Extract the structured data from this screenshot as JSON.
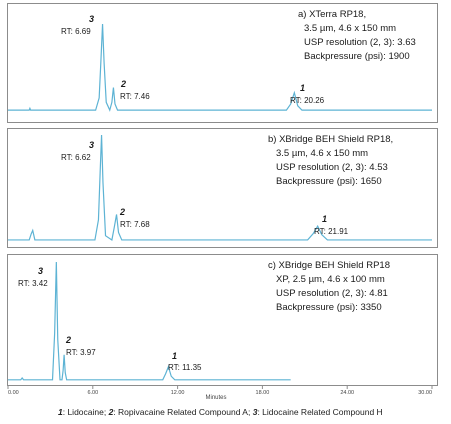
{
  "chart_data": [
    {
      "type": "line",
      "panel": "a",
      "header": [
        "a) XTerra RP18,",
        "3.5 µm, 4.6 x 150 mm",
        "USP resolution (2, 3): 3.63",
        "Backpressure (psi): 1900"
      ],
      "x": [
        0,
        1.5,
        1.55,
        1.6,
        6.2,
        6.45,
        6.58,
        6.69,
        6.8,
        6.95,
        7.2,
        7.35,
        7.46,
        7.57,
        7.75,
        19.7,
        20.0,
        20.26,
        20.5,
        20.8,
        30.0
      ],
      "y": [
        0.01,
        0.01,
        0.03,
        0.01,
        0.01,
        0.15,
        0.6,
        1.0,
        0.55,
        0.1,
        0.01,
        0.1,
        0.27,
        0.08,
        0.01,
        0.01,
        0.08,
        0.21,
        0.06,
        0.01,
        0.01
      ],
      "peaks": [
        {
          "number": "3",
          "rt_label": "RT: 6.69",
          "rt": 6.69
        },
        {
          "number": "2",
          "rt_label": "RT: 7.46",
          "rt": 7.46
        },
        {
          "number": "1",
          "rt_label": "RT: 20.26",
          "rt": 20.26
        }
      ]
    },
    {
      "type": "line",
      "panel": "b",
      "header": [
        "b) XBridge BEH Shield RP18,",
        "3.5 µm, 4.6 x 150 mm",
        "USP resolution (2, 3): 4.53",
        "Backpressure (psi): 1650"
      ],
      "x": [
        0,
        1.5,
        1.65,
        1.75,
        1.9,
        6.15,
        6.4,
        6.52,
        6.62,
        6.72,
        6.9,
        7.35,
        7.52,
        7.68,
        7.82,
        8.05,
        21.2,
        21.6,
        21.91,
        22.2,
        22.6,
        30.0
      ],
      "y": [
        0.01,
        0.01,
        0.07,
        0.1,
        0.01,
        0.01,
        0.2,
        0.65,
        1.0,
        0.55,
        0.05,
        0.01,
        0.13,
        0.25,
        0.08,
        0.01,
        0.01,
        0.07,
        0.14,
        0.06,
        0.01,
        0.01
      ],
      "peaks": [
        {
          "number": "3",
          "rt_label": "RT: 6.62",
          "rt": 6.62
        },
        {
          "number": "2",
          "rt_label": "RT: 7.68",
          "rt": 7.68
        },
        {
          "number": "1",
          "rt_label": "RT: 21.91",
          "rt": 21.91
        }
      ]
    },
    {
      "type": "line",
      "panel": "c",
      "header": [
        "c) XBridge BEH Shield RP18",
        "XP, 2.5 µm, 4.6 x 100 mm",
        "USP resolution (2, 3): 4.81",
        "Backpressure (psi): 3350"
      ],
      "x": [
        0,
        0.9,
        1.0,
        1.1,
        3.15,
        3.3,
        3.42,
        3.52,
        3.68,
        3.82,
        3.9,
        3.97,
        4.05,
        4.15,
        10.95,
        11.15,
        11.35,
        11.55,
        11.8,
        20.0
      ],
      "y": [
        0.01,
        0.01,
        0.025,
        0.01,
        0.01,
        0.4,
        1.0,
        0.35,
        0.01,
        0.01,
        0.09,
        0.22,
        0.07,
        0.01,
        0.01,
        0.06,
        0.12,
        0.04,
        0.01,
        0.01
      ],
      "peaks": [
        {
          "number": "3",
          "rt_label": "RT: 3.42",
          "rt": 3.42
        },
        {
          "number": "2",
          "rt_label": "RT: 3.97",
          "rt": 3.97
        },
        {
          "number": "1",
          "rt_label": "RT: 11.35",
          "rt": 11.35
        }
      ]
    }
  ],
  "x_axis": {
    "xlabel": "Minutes",
    "xlim": [
      0,
      30
    ],
    "tick_values": [
      0,
      6,
      12,
      18,
      24,
      30
    ],
    "tick_labels": [
      "0.00",
      "6.00",
      "12.00",
      "18.00",
      "24.00",
      "30.00"
    ]
  },
  "footnote": {
    "n1": "1",
    "t1": ": Lidocaine; ",
    "n2": "2",
    "t2": ": Ropivacaine Related Compound A; ",
    "n3": "3",
    "t3": ": Lidocaine Related Compound H"
  },
  "colors": {
    "trace": "#5db3d4",
    "frame": "#8c8c8c",
    "text": "#1a1a1a"
  }
}
